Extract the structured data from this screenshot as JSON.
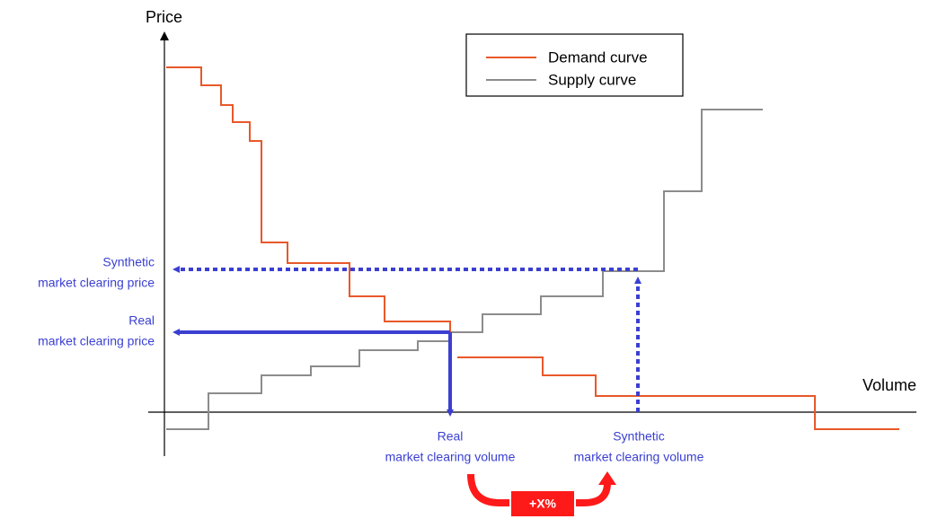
{
  "axes": {
    "y_label": "Price",
    "x_label": "Volume"
  },
  "legend": {
    "items": [
      "Demand curve",
      "Supply curve"
    ]
  },
  "annotations": {
    "synthetic_price": [
      "Synthetic",
      "market clearing price"
    ],
    "real_price": [
      "Real",
      "market clearing price"
    ],
    "real_volume": [
      "Real",
      "market clearing volume"
    ],
    "synthetic_volume": [
      "Synthetic",
      "market clearing volume"
    ]
  },
  "increase_label": "+X%"
}
